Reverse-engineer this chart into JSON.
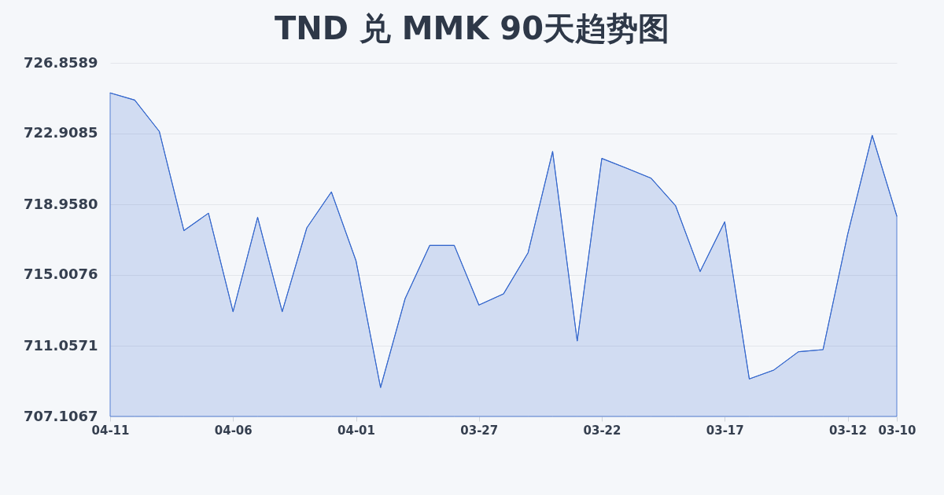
{
  "chart_data": {
    "type": "area",
    "title": "TND 兑 MMK 90天趋势图",
    "categories": [
      "04-11",
      null,
      null,
      null,
      null,
      "04-06",
      null,
      null,
      null,
      null,
      "04-01",
      null,
      null,
      null,
      null,
      "03-27",
      null,
      null,
      null,
      null,
      "03-22",
      null,
      null,
      null,
      null,
      "03-17",
      null,
      null,
      null,
      null,
      "03-12",
      null,
      "03-10"
    ],
    "series": [
      {
        "color": "#3366cc",
        "values": [
          725.18,
          724.78,
          723.03,
          717.49,
          718.46,
          712.96,
          718.23,
          712.96,
          717.64,
          719.65,
          715.81,
          708.72,
          713.69,
          716.66,
          716.66,
          713.33,
          713.95,
          716.25,
          721.91,
          711.32,
          721.52,
          720.98,
          720.42,
          718.88,
          715.2,
          717.98,
          709.2,
          709.7,
          710.72,
          710.84,
          717.27,
          722.81,
          718.3
        ]
      }
    ],
    "ylim": [
      707.1067,
      726.8589
    ],
    "yticks": [
      707.1067,
      711.0571,
      715.0076,
      {
        "value": 718.958,
        "label": "718.9580"
      },
      722.9085,
      726.8589
    ],
    "grid": "y"
  }
}
